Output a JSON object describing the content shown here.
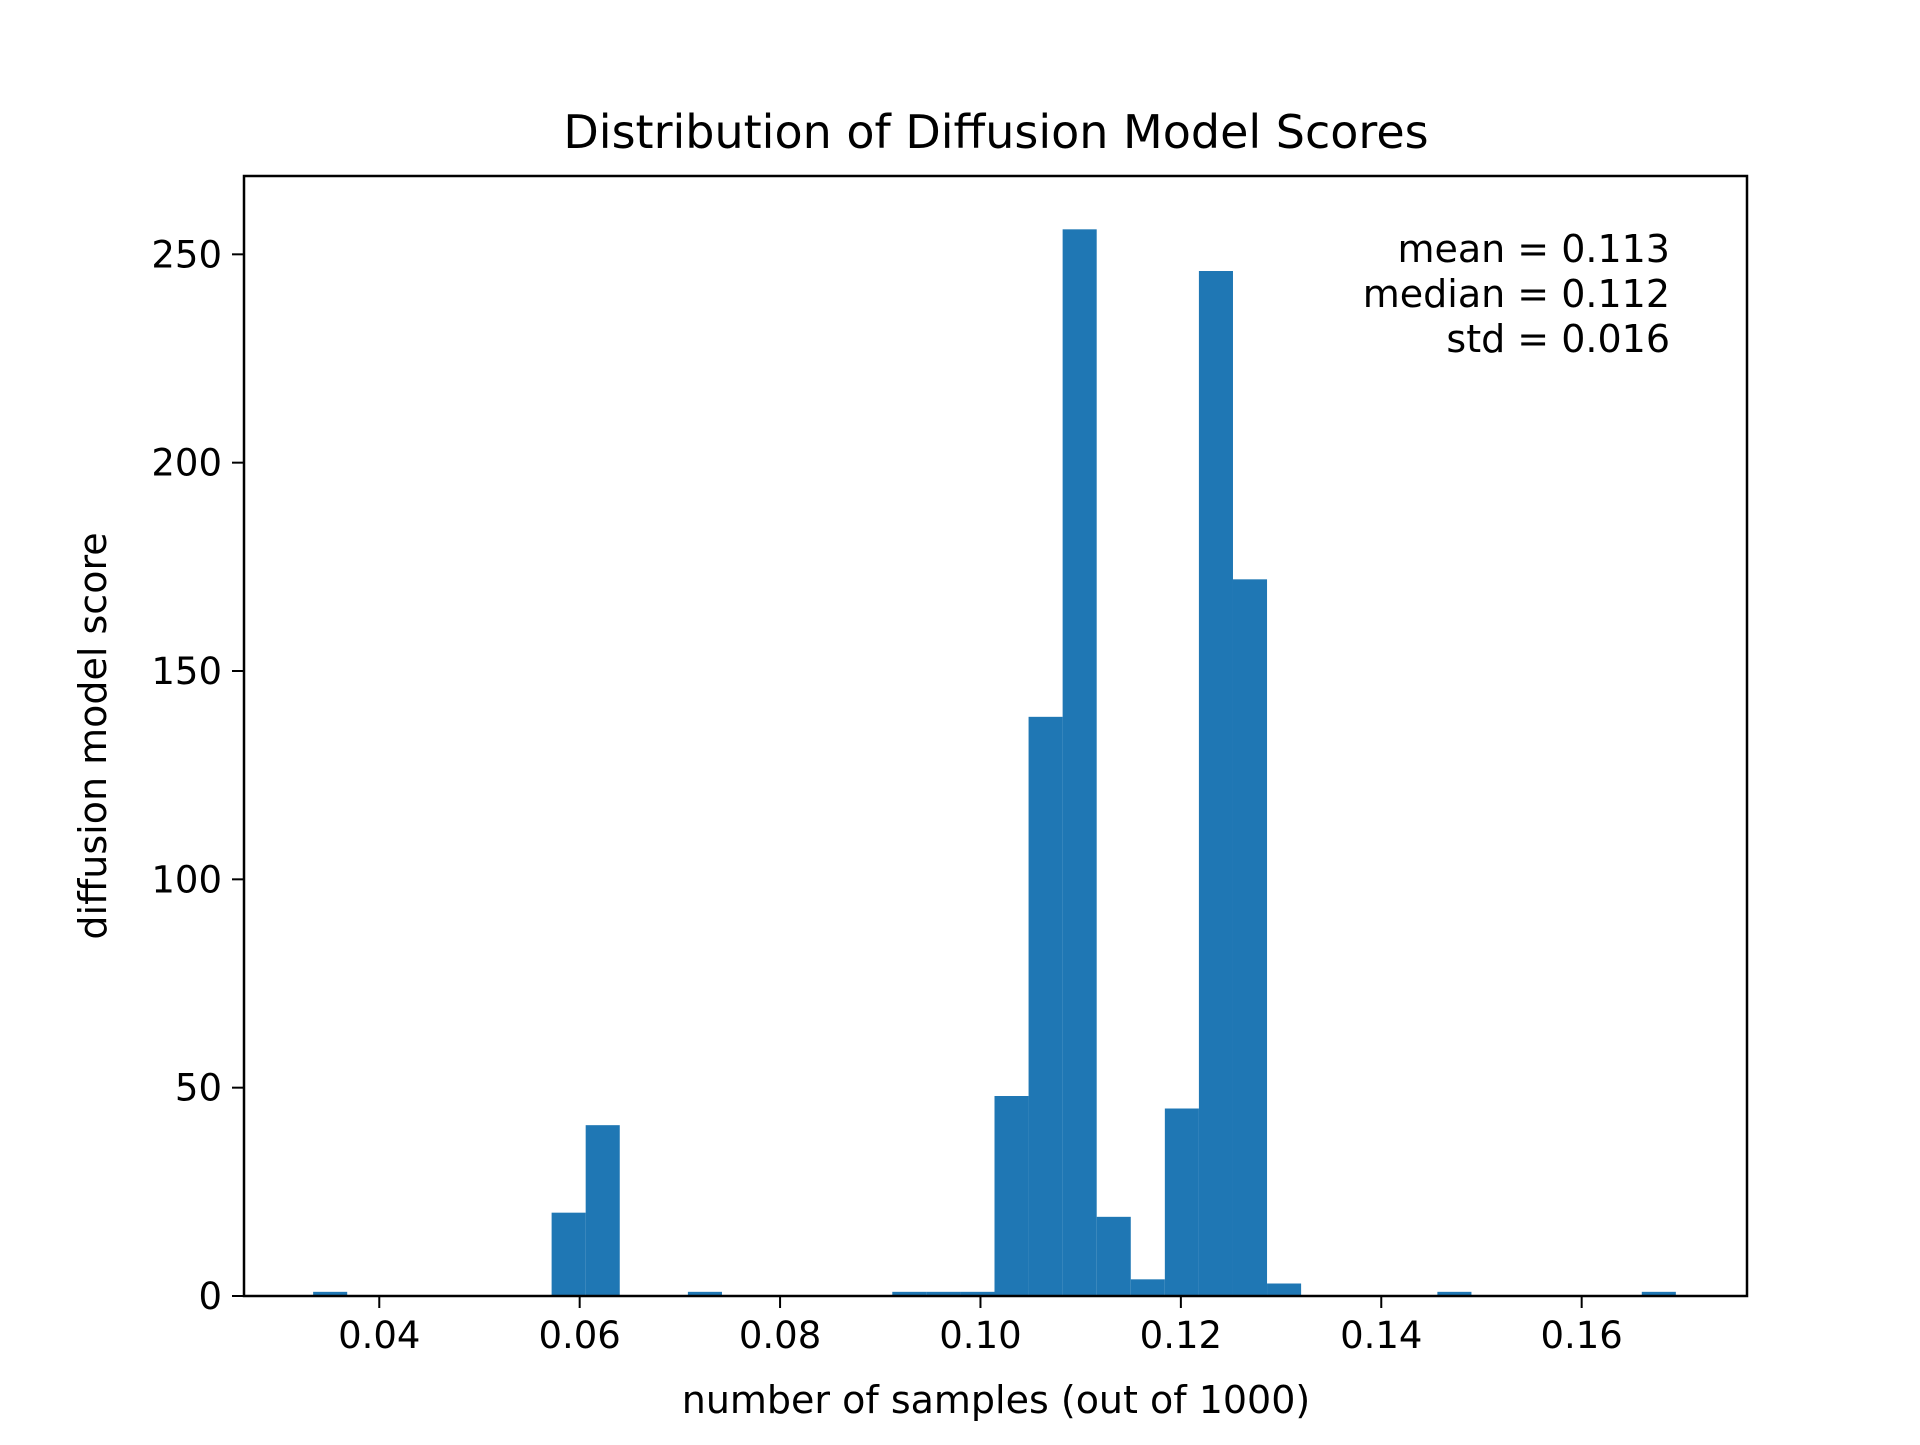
{
  "chart_data": {
    "type": "bar",
    "title": "Distribution of Diffusion Model Scores",
    "xlabel": "number of samples (out of 1000)",
    "ylabel": "diffusion model score",
    "xlim": [
      0.0265,
      0.1765
    ],
    "ylim": [
      0,
      268.8
    ],
    "grid": false,
    "bar_color": "#1f77b4",
    "bin_width": 0.0034,
    "x_ticks": [
      0.04,
      0.06,
      0.08,
      0.1,
      0.12,
      0.14,
      0.16
    ],
    "x_tick_labels": [
      "0.04",
      "0.06",
      "0.08",
      "0.10",
      "0.12",
      "0.14",
      "0.16"
    ],
    "y_ticks": [
      0,
      50,
      100,
      150,
      200,
      250
    ],
    "y_tick_labels": [
      "0",
      "50",
      "100",
      "150",
      "200",
      "250"
    ],
    "bins": [
      {
        "x0": 0.0334,
        "x1": 0.0368,
        "count": 1
      },
      {
        "x0": 0.0572,
        "x1": 0.0606,
        "count": 20
      },
      {
        "x0": 0.0606,
        "x1": 0.064,
        "count": 41
      },
      {
        "x0": 0.0708,
        "x1": 0.0742,
        "count": 1
      },
      {
        "x0": 0.0912,
        "x1": 0.0946,
        "count": 1
      },
      {
        "x0": 0.0946,
        "x1": 0.098,
        "count": 1
      },
      {
        "x0": 0.098,
        "x1": 0.1014,
        "count": 1
      },
      {
        "x0": 0.1014,
        "x1": 0.1048,
        "count": 48
      },
      {
        "x0": 0.1048,
        "x1": 0.1082,
        "count": 139
      },
      {
        "x0": 0.1082,
        "x1": 0.1116,
        "count": 256
      },
      {
        "x0": 0.1116,
        "x1": 0.115,
        "count": 19
      },
      {
        "x0": 0.115,
        "x1": 0.1184,
        "count": 4
      },
      {
        "x0": 0.1184,
        "x1": 0.1218,
        "count": 45
      },
      {
        "x0": 0.1218,
        "x1": 0.1252,
        "count": 246
      },
      {
        "x0": 0.1252,
        "x1": 0.1286,
        "count": 172
      },
      {
        "x0": 0.1286,
        "x1": 0.132,
        "count": 3
      },
      {
        "x0": 0.1456,
        "x1": 0.149,
        "count": 1
      },
      {
        "x0": 0.166,
        "x1": 0.1694,
        "count": 1
      }
    ],
    "annotations": [
      "mean = 0.113",
      "median = 0.112",
      "std = 0.016"
    ]
  }
}
